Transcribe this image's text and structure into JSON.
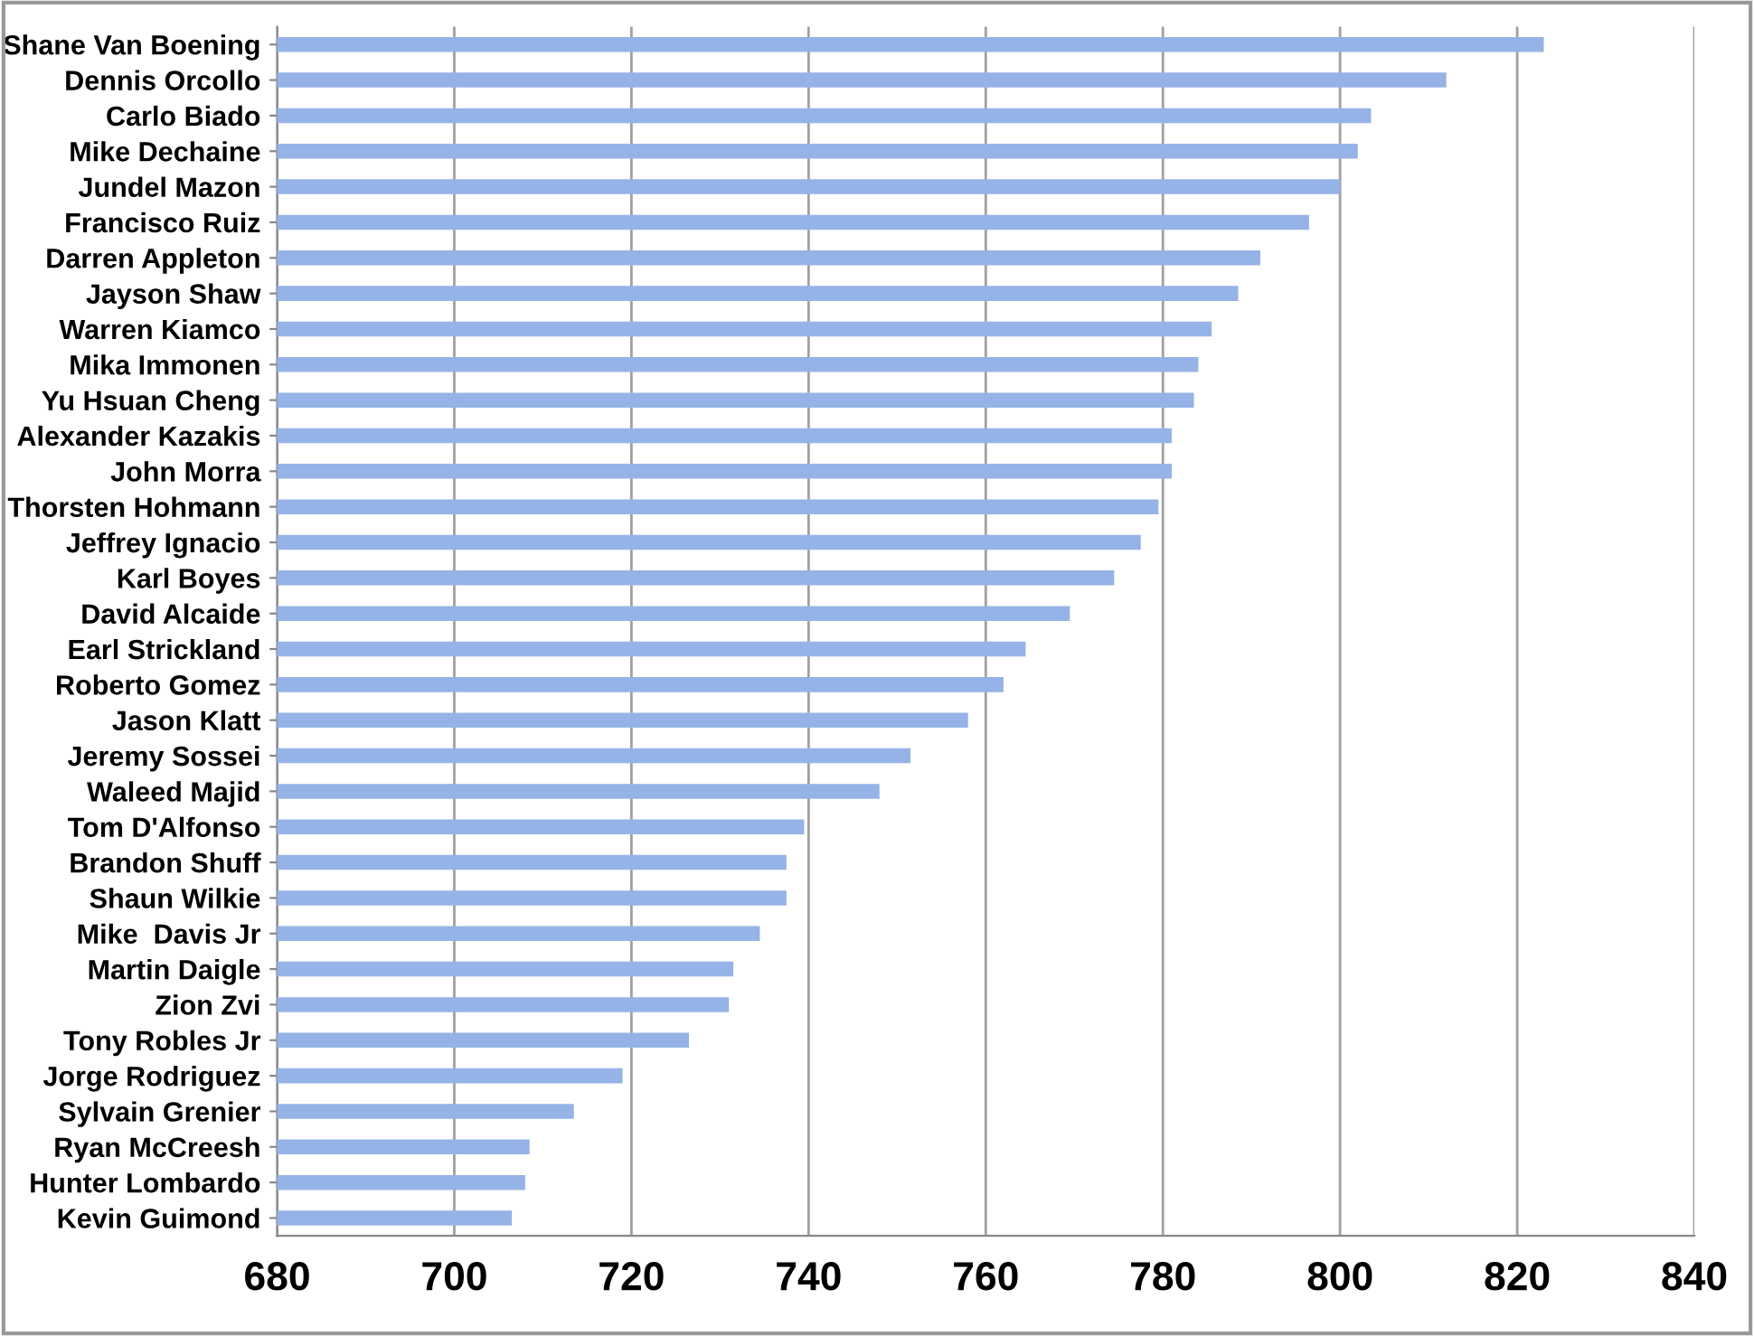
{
  "chart_data": {
    "type": "bar",
    "orientation": "horizontal",
    "categories": [
      "Shane Van Boening",
      "Dennis Orcollo",
      "Carlo Biado",
      "Mike Dechaine",
      "Jundel Mazon",
      "Francisco Ruiz",
      "Darren Appleton",
      "Jayson Shaw",
      "Warren Kiamco",
      "Mika Immonen",
      "Yu Hsuan Cheng",
      "Alexander Kazakis",
      "John Morra",
      "Thorsten Hohmann",
      "Jeffrey Ignacio",
      "Karl Boyes",
      "David Alcaide",
      "Earl Strickland",
      "Roberto Gomez",
      "Jason Klatt",
      "Jeremy Sossei",
      "Waleed Majid",
      "Tom D'Alfonso",
      "Brandon Shuff",
      "Shaun Wilkie",
      "Mike  Davis Jr",
      "Martin Daigle",
      "Zion Zvi",
      "Tony Robles Jr",
      "Jorge Rodriguez",
      "Sylvain Grenier",
      "Ryan McCreesh",
      "Hunter Lombardo",
      "Kevin Guimond"
    ],
    "values": [
      823,
      812,
      803.5,
      802,
      800,
      796.5,
      791,
      788.5,
      785.5,
      784,
      783.5,
      781,
      781,
      779.5,
      777.5,
      774.5,
      769.5,
      764.5,
      762,
      758,
      751.5,
      748,
      739.5,
      737.5,
      737.5,
      734.5,
      731.5,
      731,
      726.5,
      719,
      713.5,
      708.5,
      708,
      706.5
    ],
    "color": "#95b3e6",
    "xlim": [
      680,
      840
    ],
    "xticks": [
      680,
      700,
      720,
      740,
      760,
      780,
      800,
      820,
      840
    ],
    "grid": "x",
    "legend": false
  }
}
